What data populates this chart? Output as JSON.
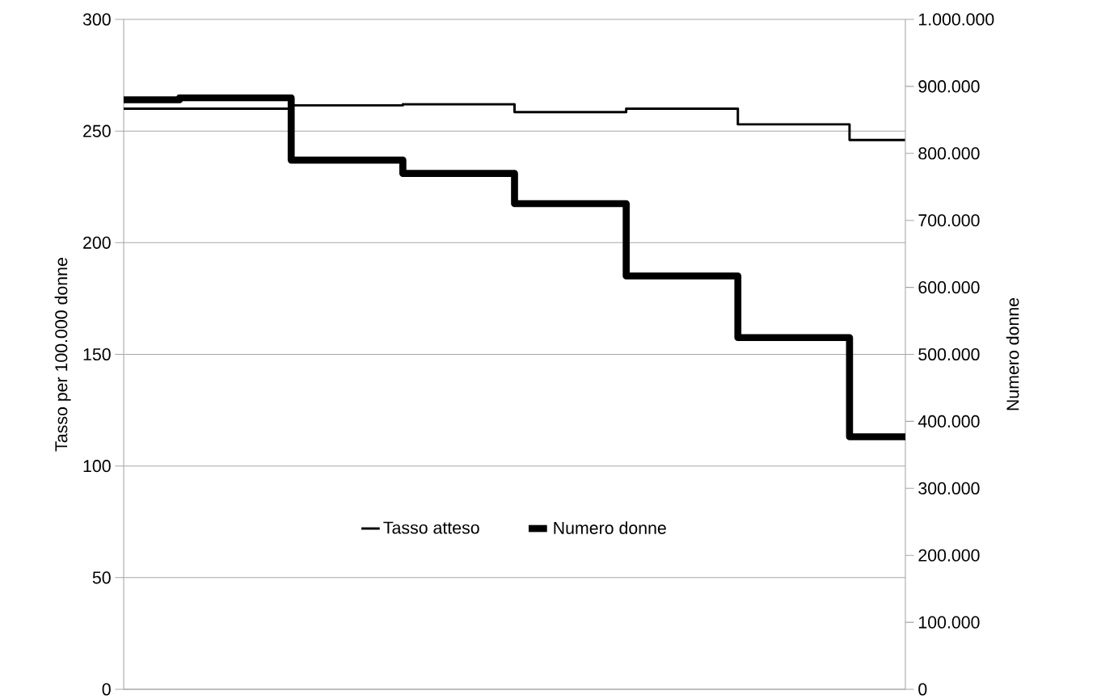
{
  "chart_data": {
    "type": "step",
    "ylabel": "Tasso per 100.000 donne",
    "y2label": "Numero donne",
    "categories": [
      null,
      null,
      null,
      null,
      null,
      null,
      null,
      null
    ],
    "series": [
      {
        "name": "Tasso atteso",
        "color": "#000000",
        "values": [
          260,
          260,
          261.5,
          262,
          258.5,
          260,
          253,
          246
        ]
      },
      {
        "name": "Numero donne",
        "color": "#000000",
        "axis": "y2",
        "values": [
          880000,
          883000,
          790000,
          770000,
          725000,
          617000,
          525000,
          377000
        ]
      }
    ],
    "ylim": [
      0,
      300
    ],
    "yticks": [
      0,
      50,
      100,
      150,
      200,
      250,
      300
    ],
    "y2lim": [
      0,
      1000000
    ],
    "y2ticks": [
      {
        "value": 0,
        "label": "0"
      },
      {
        "value": 100000,
        "label": "100.000"
      },
      {
        "value": 200000,
        "label": "200.000"
      },
      {
        "value": 300000,
        "label": "300.000"
      },
      {
        "value": 400000,
        "label": "400.000"
      },
      {
        "value": 500000,
        "label": "500.000"
      },
      {
        "value": 600000,
        "label": "600.000"
      },
      {
        "value": 700000,
        "label": "700.000"
      },
      {
        "value": 800000,
        "label": "800.000"
      },
      {
        "value": 900000,
        "label": "900.000"
      },
      {
        "value": 1000000,
        "label": "1.000.000"
      }
    ],
    "grid": "y",
    "legend": "bottom",
    "marker": "none",
    "line_style": "solid"
  }
}
